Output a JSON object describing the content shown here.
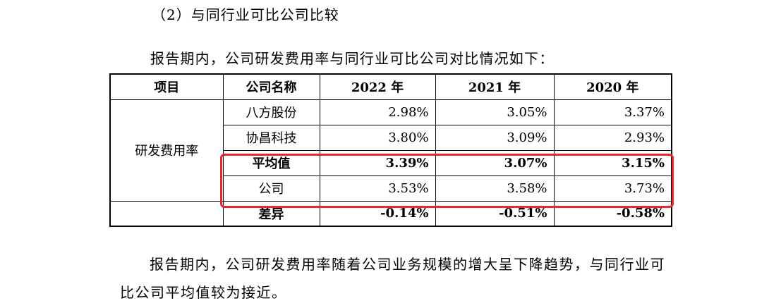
{
  "section_heading": "（2）与同行业可比公司比较",
  "intro_text": "报告期内，公司研发费用率与同行业可比公司对比情况如下：",
  "table": {
    "headers": [
      "项目",
      "公司名称",
      "2022 年",
      "2021 年",
      "2020 年"
    ],
    "category": "研发费用率",
    "rows": [
      {
        "name": "八方股份",
        "values": [
          "2.98%",
          "3.05%",
          "3.37%"
        ]
      },
      {
        "name": "协昌科技",
        "values": [
          "3.80%",
          "3.09%",
          "2.93%"
        ]
      },
      {
        "name": "平均值",
        "values": [
          "3.39%",
          "3.07%",
          "3.15%"
        ]
      },
      {
        "name": "公司",
        "values": [
          "3.53%",
          "3.58%",
          "3.73%"
        ]
      },
      {
        "name": "差异",
        "values": [
          "-0.14%",
          "-0.51%",
          "-0.58%"
        ]
      }
    ]
  },
  "highlight_color": "#e8262b",
  "conclusion_text": "报告期内，公司研发费用率随着公司业务规模的增大呈下降趋势，与同行业可比公司平均值较为接近。"
}
